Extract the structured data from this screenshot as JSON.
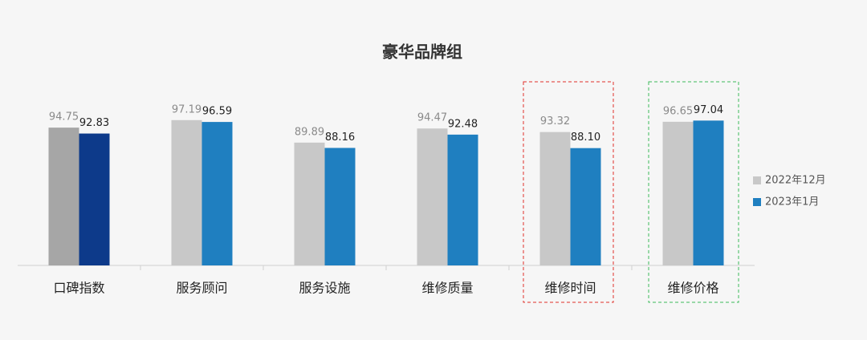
{
  "chart_data": {
    "type": "bar",
    "title": "豪华品牌组",
    "categories": [
      "口碑指数",
      "服务顾问",
      "服务设施",
      "维修质量",
      "维修时间",
      "维修价格"
    ],
    "series": [
      {
        "name": "2022年12月",
        "color": "#c8c8c8",
        "colors": [
          "#a6a6a6",
          "#c8c8c8",
          "#c8c8c8",
          "#c8c8c8",
          "#c8c8c8",
          "#c8c8c8"
        ],
        "values": [
          94.75,
          97.19,
          89.89,
          94.47,
          93.32,
          96.65
        ],
        "value_labels": [
          "94.75",
          "97.19",
          "89.89",
          "94.47",
          "93.32",
          "96.65"
        ]
      },
      {
        "name": "2023年1月",
        "color": "#1f7fc0",
        "colors": [
          "#0d3a8a",
          "#1f7fc0",
          "#1f7fc0",
          "#1f7fc0",
          "#1f7fc0",
          "#1f7fc0"
        ],
        "values": [
          92.83,
          96.59,
          88.16,
          92.48,
          88.1,
          97.04
        ],
        "value_labels": [
          "92.83",
          "96.59",
          "88.16",
          "92.48",
          "88.10",
          "97.04"
        ]
      }
    ],
    "ylim": [
      50,
      100
    ],
    "legend": "right"
  }
}
